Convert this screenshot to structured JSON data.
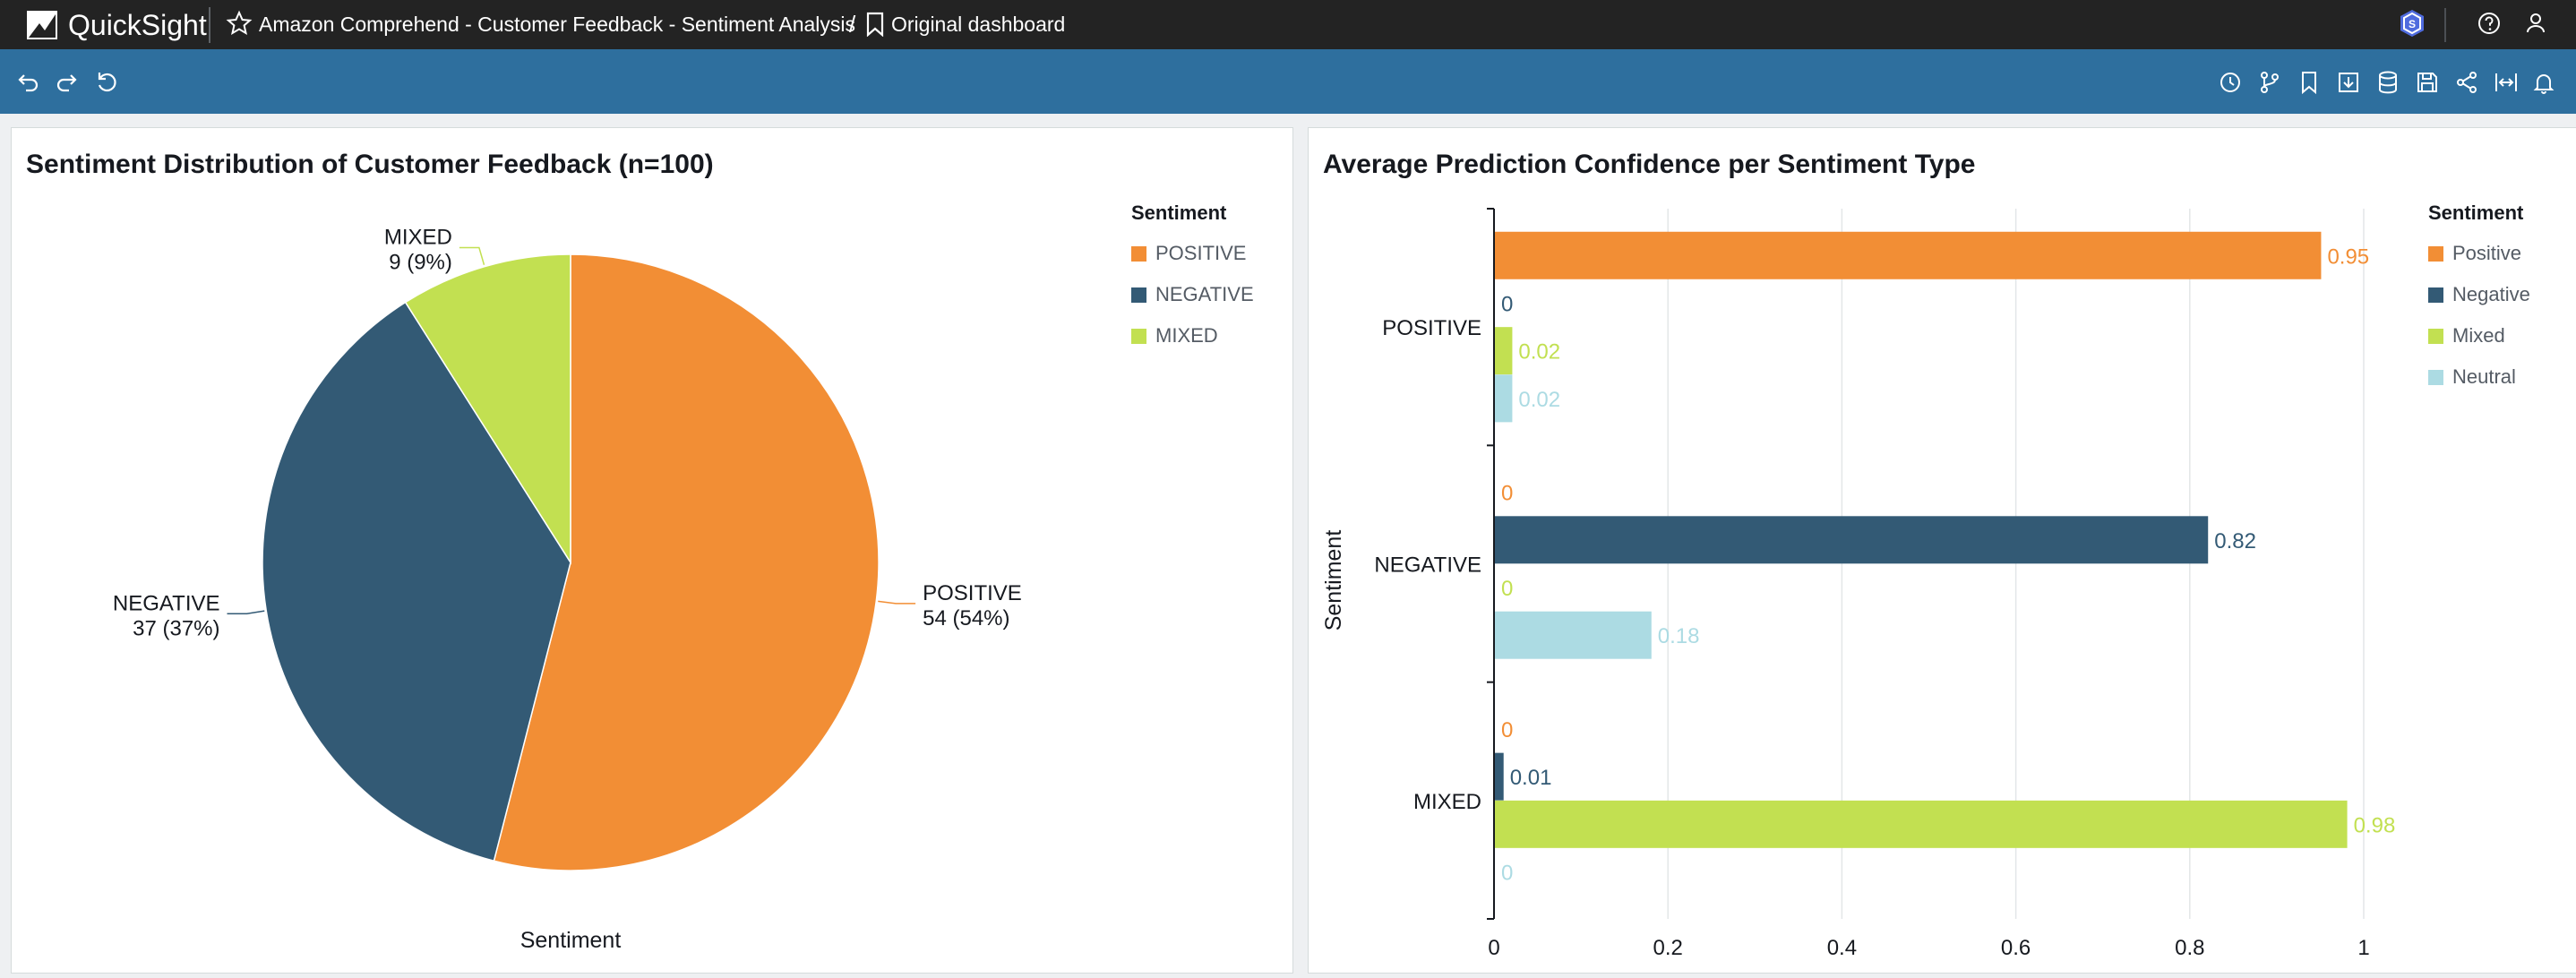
{
  "app": {
    "name": "QuickSight"
  },
  "breadcrumb": {
    "analysis_title": "Amazon Comprehend - Customer Feedback - Sentiment Analysis",
    "separator": "/",
    "dashboard_label": "Original dashboard"
  },
  "colors": {
    "positive": "#f28e35",
    "negative": "#335a75",
    "mixed": "#c2e051",
    "neutral": "#acdbe3",
    "topbar": "#232323",
    "toolbar": "#2e6f9e"
  },
  "topbar_icons": [
    "shield-badge-icon",
    "help-icon",
    "user-icon"
  ],
  "toolbar_icons": {
    "left": [
      "undo-icon",
      "redo-icon",
      "reset-icon"
    ],
    "right": [
      "schedule-icon",
      "branch-icon",
      "bookmark-icon",
      "export-icon",
      "dataset-icon",
      "save-icon",
      "share-icon",
      "fit-width-icon",
      "alert-icon"
    ]
  },
  "chart_data": [
    {
      "type": "pie",
      "title": "Sentiment Distribution of Customer Feedback (n=100)",
      "xlabel": "Sentiment",
      "legend_title": "Sentiment",
      "legend_position": "top-right",
      "categories": [
        "POSITIVE",
        "NEGATIVE",
        "MIXED"
      ],
      "values": [
        54,
        37,
        9
      ],
      "labels": [
        {
          "name": "POSITIVE",
          "value_text": "54 (54%)"
        },
        {
          "name": "NEGATIVE",
          "value_text": "37 (37%)"
        },
        {
          "name": "MIXED",
          "value_text": "9 (9%)"
        }
      ]
    },
    {
      "type": "bar",
      "orientation": "horizontal",
      "title": "Average Prediction Confidence per Sentiment Type",
      "ylabel": "Sentiment",
      "xlim": [
        0,
        1
      ],
      "x_ticks": [
        "0",
        "0.2",
        "0.4",
        "0.6",
        "0.8",
        "1"
      ],
      "grid": true,
      "legend_title": "Sentiment",
      "legend_position": "top-right",
      "categories": [
        "POSITIVE",
        "NEGATIVE",
        "MIXED"
      ],
      "series": [
        {
          "name": "Positive",
          "values": [
            0.95,
            0,
            0
          ]
        },
        {
          "name": "Negative",
          "values": [
            0,
            0.82,
            0.01
          ]
        },
        {
          "name": "Mixed",
          "values": [
            0.02,
            0,
            0.98
          ]
        },
        {
          "name": "Neutral",
          "values": [
            0.02,
            0.18,
            0
          ]
        }
      ]
    }
  ]
}
